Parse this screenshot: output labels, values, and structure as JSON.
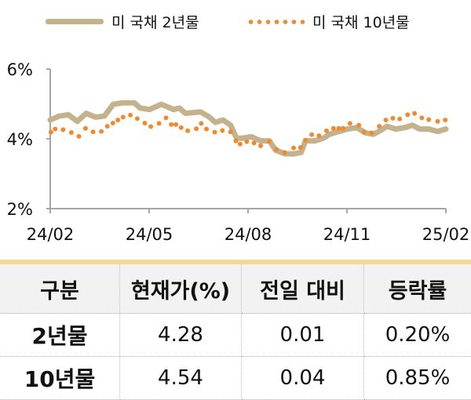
{
  "legend": {
    "series_2y": "미 국채 2년물",
    "series_10y": "미 국채 10년물"
  },
  "colors": {
    "series_2y": "#C4B28D",
    "series_10y": "#F08A30",
    "axis": "#A6A6A6",
    "table_header_bg": "#F2F2F2",
    "table_top_bar": "#F5D993"
  },
  "chart_data": {
    "type": "line",
    "title": "",
    "xlabel": "",
    "ylabel": "",
    "x_unit": "months since 24/02",
    "xlim": [
      0,
      12
    ],
    "ylim": [
      2,
      6
    ],
    "x_ticks": [
      {
        "x": 0,
        "label": "24/02"
      },
      {
        "x": 3,
        "label": "24/05"
      },
      {
        "x": 6,
        "label": "24/08"
      },
      {
        "x": 9,
        "label": "24/11"
      },
      {
        "x": 12,
        "label": "25/02"
      }
    ],
    "y_ticks": [
      {
        "y": 6,
        "label": "6%"
      },
      {
        "y": 4,
        "label": "4%"
      },
      {
        "y": 2,
        "label": "2%"
      }
    ],
    "grid": false,
    "legend_position": "top",
    "series": [
      {
        "name": "미 국채 2년물",
        "style": "thick-line",
        "x": [
          0,
          0.27,
          0.55,
          0.82,
          1.09,
          1.37,
          1.64,
          1.91,
          2.19,
          2.55,
          2.73,
          3.01,
          3.37,
          3.74,
          3.92,
          4.1,
          4.56,
          4.83,
          5.01,
          5.24,
          5.47,
          5.65,
          5.83,
          6.1,
          6.38,
          6.65,
          6.83,
          7.11,
          7.38,
          7.61,
          7.74,
          8.02,
          8.29,
          8.47,
          8.75,
          9.02,
          9.29,
          9.57,
          9.8,
          10.02,
          10.21,
          10.48,
          10.75,
          10.98,
          11.21,
          11.48,
          11.75,
          12
        ],
        "y": [
          4.54,
          4.65,
          4.69,
          4.5,
          4.73,
          4.62,
          4.65,
          4.99,
          5.03,
          5.03,
          4.88,
          4.84,
          4.99,
          4.84,
          4.88,
          4.73,
          4.77,
          4.62,
          4.47,
          4.54,
          4.39,
          4.02,
          4.02,
          4.06,
          3.94,
          3.94,
          3.68,
          3.57,
          3.57,
          3.61,
          3.94,
          3.94,
          4.02,
          4.13,
          4.21,
          4.28,
          4.32,
          4.17,
          4.13,
          4.24,
          4.36,
          4.28,
          4.32,
          4.39,
          4.28,
          4.28,
          4.21,
          4.28
        ]
      },
      {
        "name": "미 국채 10년물",
        "style": "dots",
        "x": [
          0.02,
          0.15,
          0.39,
          0.64,
          0.87,
          1.07,
          1.3,
          1.55,
          1.73,
          1.9,
          2.05,
          2.21,
          2.43,
          2.64,
          2.87,
          3.05,
          3.3,
          3.51,
          3.67,
          3.81,
          3.97,
          4.17,
          4.43,
          4.58,
          4.74,
          4.99,
          5.22,
          5.47,
          5.63,
          5.76,
          5.96,
          6.18,
          6.38,
          6.64,
          6.86,
          7.11,
          7.38,
          7.59,
          7.74,
          7.93,
          8.15,
          8.38,
          8.59,
          8.75,
          8.88,
          9.09,
          9.36,
          9.52,
          9.75,
          9.98,
          10.18,
          10.39,
          10.6,
          10.84,
          11.05,
          11.27,
          11.48,
          11.75,
          11.98
        ],
        "y": [
          4.19,
          4.28,
          4.26,
          4.18,
          4.07,
          4.3,
          4.2,
          4.21,
          4.36,
          4.45,
          4.54,
          4.62,
          4.68,
          4.58,
          4.45,
          4.35,
          4.44,
          4.6,
          4.41,
          4.41,
          4.32,
          4.23,
          4.29,
          4.44,
          4.28,
          4.19,
          4.24,
          4.2,
          3.94,
          3.85,
          3.92,
          3.88,
          3.8,
          3.92,
          3.7,
          3.61,
          3.74,
          3.75,
          3.96,
          4.12,
          4.09,
          4.23,
          4.3,
          4.3,
          4.3,
          4.44,
          4.39,
          4.19,
          4.17,
          4.36,
          4.54,
          4.59,
          4.57,
          4.69,
          4.73,
          4.6,
          4.55,
          4.5,
          4.54
        ]
      }
    ]
  },
  "table": {
    "headers": [
      "구분",
      "현재가(%)",
      "전일 대비",
      "등락률"
    ],
    "rows": [
      [
        "2년물",
        "4.28",
        "0.01",
        "0.20%"
      ],
      [
        "10년물",
        "4.54",
        "0.04",
        "0.85%"
      ]
    ]
  }
}
